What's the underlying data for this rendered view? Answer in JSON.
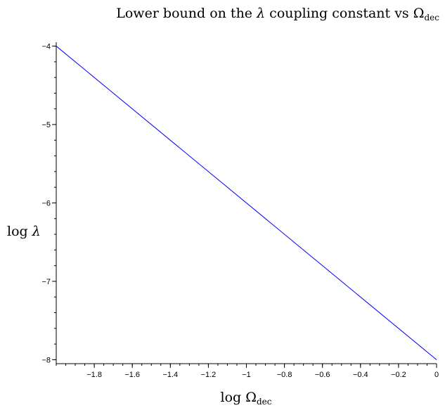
{
  "chart_data": {
    "type": "line",
    "title": {
      "prefix": "Lower bound on the ",
      "symbol": "λ",
      "middle": " coupling constant vs ",
      "omega": "Ω",
      "subscript": "dec"
    },
    "xlabel": {
      "prefix": "log ",
      "omega": "Ω",
      "subscript": "dec"
    },
    "ylabel": {
      "prefix": "log ",
      "symbol": "λ"
    },
    "xlim": [
      -2.0,
      0.0
    ],
    "ylim": [
      -8.05,
      -3.95
    ],
    "x_ticks": [
      -1.8,
      -1.6,
      -1.4,
      -1.2,
      -1,
      -0.8,
      -0.6,
      -0.4,
      -0.2,
      0
    ],
    "x_tick_labels": [
      "−1.8",
      "−1.6",
      "−1.4",
      "−1.2",
      "−1",
      "−0.8",
      "−0.6",
      "−0.4",
      "−0.2",
      "0"
    ],
    "y_ticks": [
      -4,
      -5,
      -6,
      -7,
      -8
    ],
    "y_tick_labels": [
      "−4",
      "−5",
      "−6",
      "−7",
      "−8"
    ],
    "x_minor_step": 0.05,
    "y_minor_step": 0.2,
    "series": [
      {
        "color": "#0000ff",
        "x": [
          -2.0,
          0.0
        ],
        "y": [
          -4.0,
          -8.0
        ]
      }
    ],
    "grid": false,
    "legend": "none"
  }
}
